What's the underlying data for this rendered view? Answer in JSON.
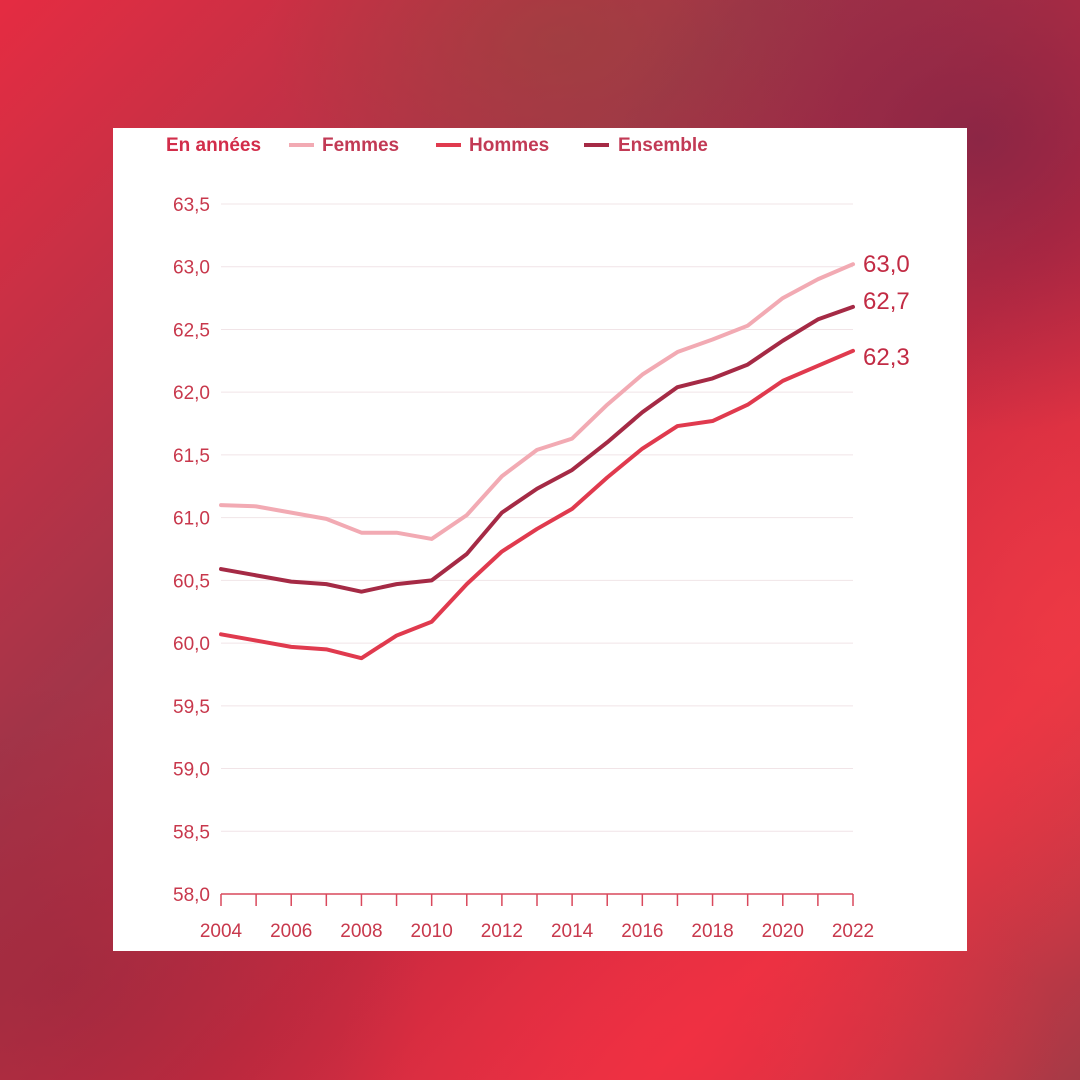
{
  "chart_data": {
    "type": "line",
    "unit_label": "En années",
    "x": [
      2004,
      2005,
      2006,
      2007,
      2008,
      2009,
      2010,
      2011,
      2012,
      2013,
      2014,
      2015,
      2016,
      2017,
      2018,
      2019,
      2020,
      2021,
      2022
    ],
    "x_tick_labels": [
      "2004",
      "2006",
      "2008",
      "2010",
      "2012",
      "2014",
      "2016",
      "2018",
      "2020",
      "2022"
    ],
    "y_tick_labels": [
      "63,5",
      "63,0",
      "62,5",
      "62,0",
      "61,5",
      "61,0",
      "60,5",
      "60,0",
      "59,5",
      "59,0",
      "58,5",
      "58,0"
    ],
    "ylim": [
      58.0,
      63.5
    ],
    "grid": true,
    "legend_position": "top-left",
    "series": [
      {
        "name": "Femmes",
        "color": "#f2aab3",
        "values": [
          61.1,
          61.09,
          61.04,
          60.99,
          60.88,
          60.88,
          60.83,
          61.02,
          61.33,
          61.54,
          61.63,
          61.9,
          62.14,
          62.32,
          62.42,
          62.53,
          62.75,
          62.9,
          63.02
        ],
        "end_label": "63,0"
      },
      {
        "name": "Hommes",
        "color": "#e03a4e",
        "values": [
          60.07,
          60.02,
          59.97,
          59.95,
          59.88,
          60.06,
          60.17,
          60.47,
          60.73,
          60.91,
          61.07,
          61.32,
          61.55,
          61.73,
          61.77,
          61.9,
          62.09,
          62.21,
          62.33
        ],
        "end_label": "62,3"
      },
      {
        "name": "Ensemble",
        "color": "#a52a45",
        "values": [
          60.59,
          60.54,
          60.49,
          60.47,
          60.41,
          60.47,
          60.5,
          60.71,
          61.04,
          61.23,
          61.38,
          61.6,
          61.84,
          62.04,
          62.11,
          62.22,
          62.41,
          62.58,
          62.68
        ],
        "end_label": "62,7"
      }
    ]
  }
}
